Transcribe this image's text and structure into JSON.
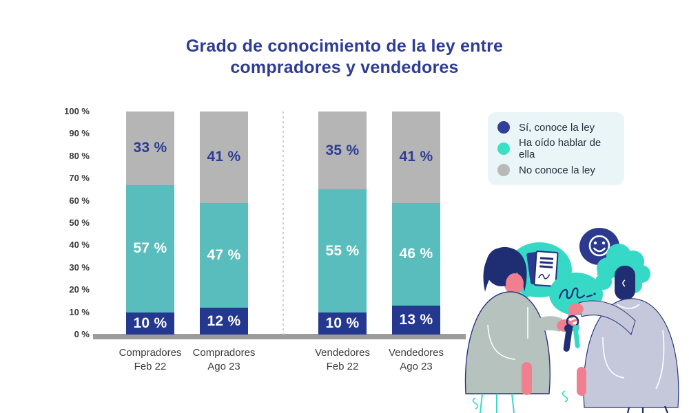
{
  "title": "Grado de conocimiento de la ley entre compradores y vendedores",
  "colors": {
    "title_blue": "#2d3c94",
    "bar_blue": "#24388f",
    "bar_teal": "#58bdbc",
    "bar_gray": "#b5b5b6",
    "baseline_gray": "#9c9c9c",
    "legend_bg": "#eaf5f8",
    "label_on_gray": "#2d3c94",
    "label_on_color": "#ffffff"
  },
  "legend": {
    "items": [
      {
        "label": "Sí, conoce la ley",
        "color": "#333f9b"
      },
      {
        "label": "Ha oído hablar de ella",
        "color": "#3ce0c5"
      },
      {
        "label": "No conoce la ley",
        "color": "#b9b9b9"
      }
    ]
  },
  "chart_data": {
    "type": "bar",
    "stacked": true,
    "title": "Grado de conocimiento de la ley entre compradores y vendedores",
    "categories": [
      [
        "Compradores",
        "Feb 22"
      ],
      [
        "Compradores",
        "Ago 23"
      ],
      [
        "Vendedores",
        "Feb 22"
      ],
      [
        "Vendedores",
        "Ago 23"
      ]
    ],
    "series": [
      {
        "name": "Sí, conoce la ley",
        "values": [
          10,
          12,
          10,
          13
        ],
        "color": "#24388f",
        "label_color": "#ffffff"
      },
      {
        "name": "Ha oído hablar de ella",
        "values": [
          57,
          47,
          55,
          46
        ],
        "color": "#58bdbc",
        "label_color": "#ffffff"
      },
      {
        "name": "No conoce la ley",
        "values": [
          33,
          41,
          35,
          41
        ],
        "color": "#b5b5b6",
        "label_color": "#2d3c94"
      }
    ],
    "yticks": [
      "100 %",
      "90 %",
      "80 %",
      "70 %",
      "60 %",
      "50 %",
      "40 %",
      "30 %",
      "20 %",
      "10 %",
      "0 %"
    ],
    "ylim": [
      0,
      100
    ],
    "value_suffix": " %",
    "grid": false,
    "legend_position": "top-right",
    "group_separator_between": [
      "Compradores",
      "Vendedores"
    ]
  }
}
